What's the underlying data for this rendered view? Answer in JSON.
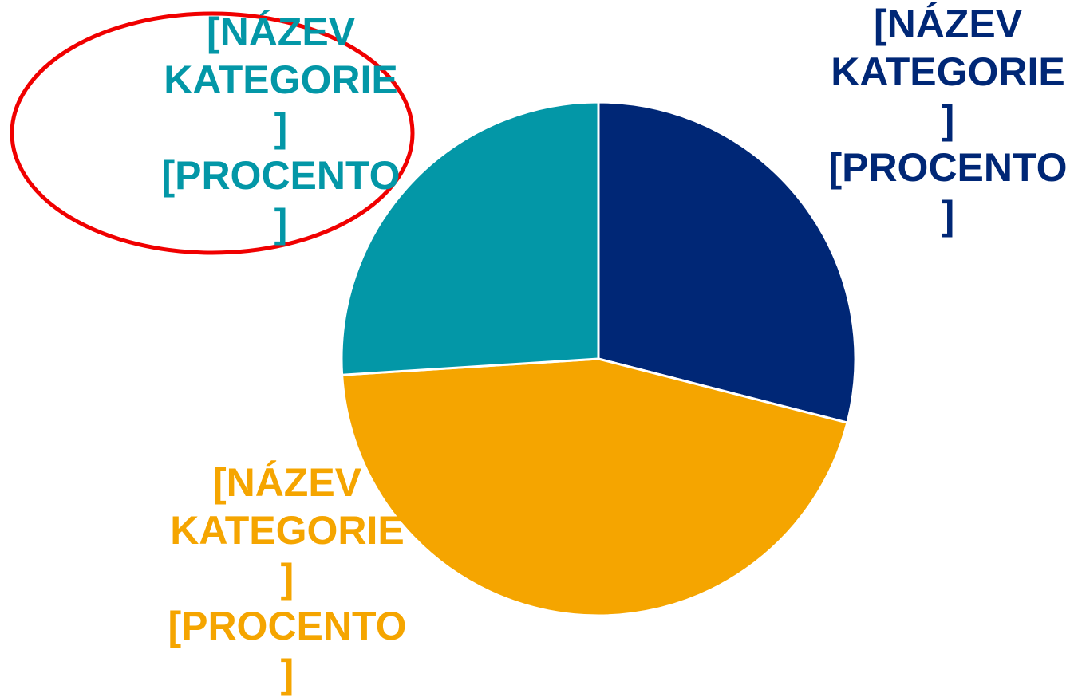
{
  "chart_data": {
    "type": "pie",
    "categories": [
      "[NÁZEV KATEGORIE]",
      "[NÁZEV KATEGORIE]",
      "[NÁZEV KATEGORIE]"
    ],
    "values": [
      29,
      45,
      26
    ],
    "value_labels": [
      "[PROCENTO]",
      "[PROCENTO]",
      "[PROCENTO]"
    ],
    "colors": [
      "#002776",
      "#f5a500",
      "#0397a7"
    ]
  }
}
